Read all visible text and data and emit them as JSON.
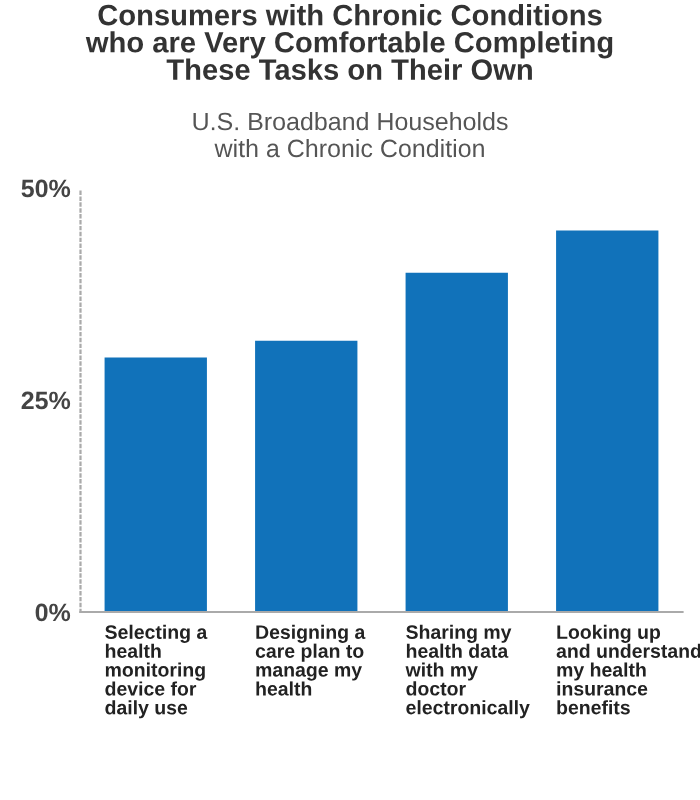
{
  "chart_data": {
    "type": "bar",
    "title": "Consumers with Chronic Conditions\nwho are Very Comfortable Completing\nThese Tasks on Their Own",
    "subtitle": "U.S. Broadband Households\nwith a Chronic Condition",
    "categories": [
      "Selecting a\nhealth\nmonitoring\ndevice for\ndaily use",
      "Designing a\ncare plan to\nmanage my\nhealth",
      "Sharing my\nhealth data\nwith my\ndoctor\nelectronically",
      "Looking up\nand understand\nmy health\ninsurance\nbenefits"
    ],
    "values": [
      30,
      32,
      40,
      45
    ],
    "color": "#1172ba",
    "ylim": [
      0,
      50
    ],
    "yticks": [
      {
        "value": 0,
        "label": "0%"
      },
      {
        "value": 25,
        "label": "25%"
      },
      {
        "value": 50,
        "label": "50%"
      }
    ],
    "grid": false
  }
}
